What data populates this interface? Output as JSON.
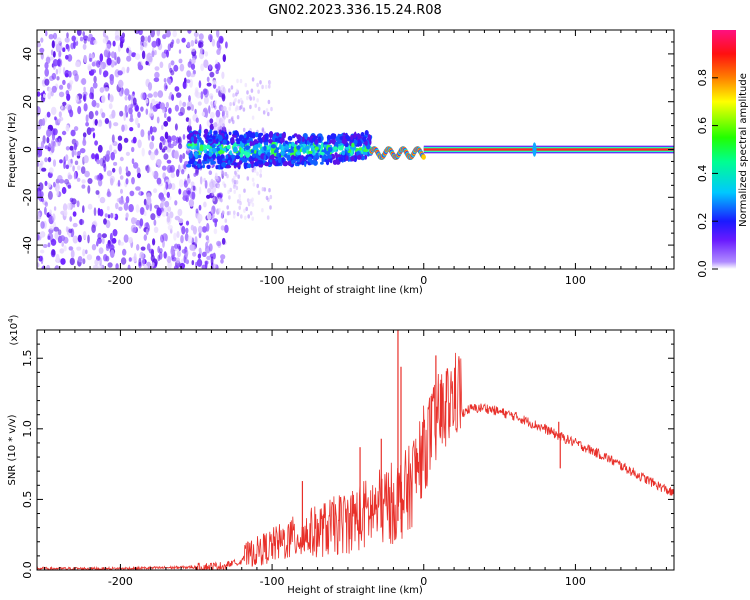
{
  "title": "GN02.2023.336.15.24.R08",
  "colors": {
    "snr_line": "#e8302a",
    "spectrum_low": "#6a1bff",
    "spectrum_mid": "#16d0f0",
    "spectrum_high": "#ff2222"
  },
  "chart_data": [
    {
      "type": "heatmap",
      "title": "GN02.2023.336.15.24.R08",
      "xlabel": "Height of straight line (km)",
      "ylabel": "Frequency (Hz)",
      "xlim": [
        -255,
        165
      ],
      "ylim": [
        -50,
        50
      ],
      "x_ticks": [
        -200,
        -100,
        0,
        100
      ],
      "x_tick_labels": [
        "-200",
        "-100",
        "0",
        "100"
      ],
      "y_ticks": [
        -40,
        -20,
        0,
        20,
        40
      ],
      "y_tick_labels": [
        "-40",
        "-20",
        "0",
        "20",
        "40"
      ],
      "colorbar": {
        "label": "Normalized spectral amplitude",
        "range": [
          0.0,
          1.0
        ],
        "ticks": [
          0.0,
          0.2,
          0.4,
          0.6,
          0.8
        ],
        "tick_labels": [
          "0.0",
          "0.2",
          "0.4",
          "0.6",
          "0.8"
        ]
      },
      "features": [
        {
          "desc": "broadband noise",
          "x_range": [
            -255,
            -140
          ],
          "freq_range": [
            -50,
            50
          ],
          "amplitude": 0.05
        },
        {
          "desc": "scattered noise",
          "x_range": [
            -140,
            -100
          ],
          "freq_range": [
            -30,
            30
          ],
          "amplitude": 0.02
        },
        {
          "desc": "signal band",
          "x_range": [
            -155,
            -35
          ],
          "freq_range": [
            -8,
            8
          ],
          "amplitude": 0.25
        },
        {
          "desc": "signal ridge",
          "x_range": [
            -35,
            0
          ],
          "freq_range": [
            -4,
            2
          ],
          "amplitude": 0.7
        },
        {
          "desc": "carrier line",
          "x_range": [
            0,
            165
          ],
          "freq_range": [
            -1,
            1
          ],
          "amplitude": 1.0
        },
        {
          "desc": "carrier blip",
          "x_range": [
            73,
            74
          ],
          "freq_range": [
            -3,
            3
          ],
          "amplitude": 0.3
        }
      ]
    },
    {
      "type": "line",
      "xlabel": "Height of straight line (km)",
      "ylabel": "SNR (10 * v/v)",
      "y_multiplier": "(x10",
      "y_multiplier_exp": "4",
      "y_multiplier_close": ")",
      "xlim": [
        -255,
        165
      ],
      "ylim": [
        0.0,
        1.7
      ],
      "x_ticks": [
        -200,
        -100,
        0,
        100
      ],
      "x_tick_labels": [
        "-200",
        "-100",
        "0",
        "100"
      ],
      "y_ticks": [
        0.0,
        0.5,
        1.0,
        1.5
      ],
      "y_tick_labels": [
        "0.0",
        "0.5",
        "1.0",
        "1.5"
      ],
      "series": [
        {
          "color": "#e8302a",
          "x": [
            -255,
            -200,
            -150,
            -130,
            -120,
            -110,
            -100,
            -90,
            -80,
            -70,
            -60,
            -50,
            -40,
            -30,
            -20,
            -15,
            -10,
            -5,
            0,
            10,
            20,
            30,
            40,
            60,
            80,
            89,
            100,
            120,
            140,
            165
          ],
          "y": [
            0.01,
            0.01,
            0.02,
            0.03,
            0.05,
            0.08,
            0.11,
            0.14,
            0.16,
            0.18,
            0.2,
            0.23,
            0.26,
            0.3,
            0.33,
            0.36,
            0.4,
            0.55,
            0.7,
            0.93,
            1.08,
            1.14,
            1.15,
            1.09,
            1.0,
            0.95,
            0.9,
            0.8,
            0.68,
            0.54
          ]
        }
      ],
      "peaks": [
        {
          "x": -17,
          "y": 1.7
        },
        {
          "x": -15,
          "y": 1.44
        },
        {
          "x": 8,
          "y": 1.52
        },
        {
          "x": 11,
          "y": 1.32
        },
        {
          "x": -28,
          "y": 0.93
        },
        {
          "x": -42,
          "y": 0.87
        },
        {
          "x": -80,
          "y": 0.63
        },
        {
          "x": 89,
          "y": 1.05
        },
        {
          "x": 90,
          "y": 0.72
        }
      ]
    }
  ]
}
